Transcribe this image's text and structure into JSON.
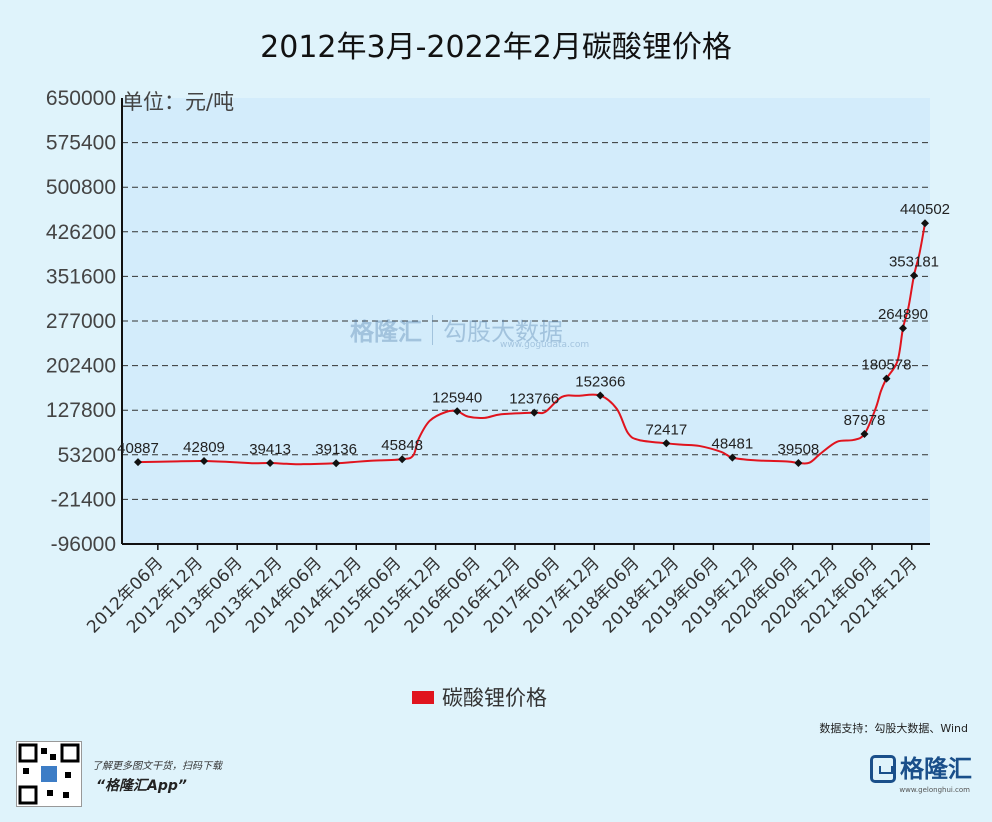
{
  "title": "2012年3月-2022年2月碳酸锂价格",
  "unit_label": "单位：元/吨",
  "source": "数据支持：勾股大数据、Wind",
  "footer": {
    "hint": "了解更多图文干货，扫码下载",
    "app": "“格隆汇App”"
  },
  "brand": {
    "name": "格隆汇",
    "url": "www.gelonghui.com"
  },
  "watermark": {
    "left": "格隆汇",
    "right": "勾股大数据",
    "url": "www.gogudata.com"
  },
  "chart_data": {
    "type": "line",
    "title": "2012年3月-2022年2月碳酸锂价格",
    "ylabel": "单位：元/吨",
    "ylim": [
      -96000,
      650000
    ],
    "yticks": [
      650000,
      575400,
      500800,
      426200,
      351600,
      277000,
      202400,
      127800,
      53200,
      -21400,
      -96000
    ],
    "ytick_labels": [
      "650000",
      "575400",
      "500800",
      "426200",
      "351600",
      "277000",
      "202400",
      "127800",
      "53200",
      "-21400",
      "-96000"
    ],
    "xtick_labels": [
      "2012年06月",
      "2012年12月",
      "2013年06月",
      "2013年12月",
      "2014年06月",
      "2014年12月",
      "2015年06月",
      "2015年12月",
      "2016年06月",
      "2016年12月",
      "2017年06月",
      "2017年12月",
      "2018年06月",
      "2018年12月",
      "2019年06月",
      "2019年12月",
      "2020年06月",
      "2020年12月",
      "2021年06月",
      "2021年12月"
    ],
    "xtick_months": [
      3,
      9,
      15,
      21,
      27,
      33,
      39,
      45,
      51,
      57,
      63,
      69,
      75,
      81,
      87,
      93,
      99,
      105,
      111,
      117
    ],
    "x_month_range": [
      0,
      119
    ],
    "grid": true,
    "legend": "bottom",
    "color": "#e0141e",
    "series": [
      {
        "name": "碳酸锂价格",
        "points": [
          [
            0,
            40887
          ],
          [
            6,
            42000
          ],
          [
            12,
            42809
          ],
          [
            18,
            40500
          ],
          [
            21,
            39000
          ],
          [
            24,
            39413
          ],
          [
            27,
            38200
          ],
          [
            30,
            37500
          ],
          [
            36,
            39136
          ],
          [
            39,
            41000
          ],
          [
            42,
            43000
          ],
          [
            48,
            45848
          ],
          [
            50,
            52000
          ],
          [
            51,
            80000
          ],
          [
            53,
            110000
          ],
          [
            56,
            125000
          ],
          [
            58,
            125940
          ],
          [
            60,
            117000
          ],
          [
            63,
            115000
          ],
          [
            66,
            121000
          ],
          [
            72,
            123766
          ],
          [
            74,
            125000
          ],
          [
            77,
            150000
          ],
          [
            80,
            152000
          ],
          [
            84,
            152366
          ],
          [
            87,
            130000
          ],
          [
            89,
            90000
          ],
          [
            91,
            78000
          ],
          [
            96,
            72417
          ],
          [
            99,
            70000
          ],
          [
            102,
            68000
          ],
          [
            106,
            58000
          ],
          [
            108,
            48481
          ],
          [
            112,
            44000
          ],
          [
            118,
            42000
          ],
          [
            120,
            39508
          ],
          [
            122,
            40000
          ],
          [
            124,
            55000
          ],
          [
            127,
            75000
          ],
          [
            130,
            78000
          ],
          [
            132,
            87978
          ],
          [
            134,
            130000
          ],
          [
            135,
            160000
          ],
          [
            136,
            180578
          ],
          [
            138,
            210000
          ],
          [
            139,
            264890
          ],
          [
            140,
            300000
          ],
          [
            141,
            353181
          ],
          [
            142,
            390000
          ],
          [
            143,
            440502
          ]
        ],
        "labels": [
          {
            "x": 0,
            "text": "40887"
          },
          {
            "x": 12,
            "text": "42809"
          },
          {
            "x": 24,
            "text": "39413"
          },
          {
            "x": 36,
            "text": "39136"
          },
          {
            "x": 48,
            "text": "45848"
          },
          {
            "x": 58,
            "text": "125940"
          },
          {
            "x": 72,
            "text": "123766"
          },
          {
            "x": 84,
            "text": "152366"
          },
          {
            "x": 96,
            "text": "72417"
          },
          {
            "x": 108,
            "text": "48481"
          },
          {
            "x": 120,
            "text": "39508"
          },
          {
            "x": 132,
            "text": "87978"
          },
          {
            "x": 136,
            "text": "180578"
          },
          {
            "x": 139,
            "text": "264890"
          },
          {
            "x": 141,
            "text": "353181"
          },
          {
            "x": 143,
            "text": "440502"
          }
        ]
      }
    ]
  }
}
